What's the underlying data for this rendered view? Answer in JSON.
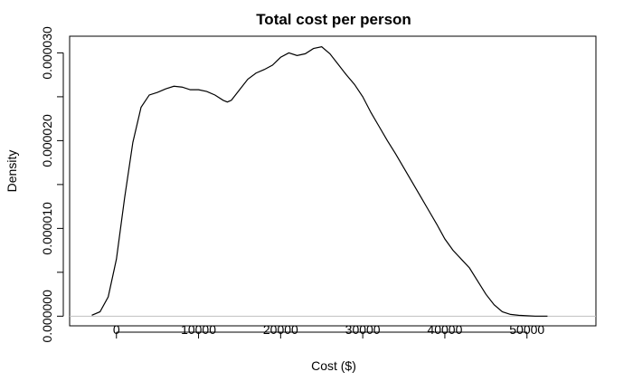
{
  "chart_data": {
    "type": "line",
    "title": "Total cost per person",
    "xlabel": "Cost ($)",
    "ylabel": "Density",
    "xlim": [
      -5700,
      58400
    ],
    "ylim": [
      -1.1e-06,
      3.19e-05
    ],
    "x_ticks": [
      0,
      10000,
      20000,
      30000,
      40000,
      50000
    ],
    "x_tick_labels": [
      "0",
      "10000",
      "20000",
      "30000",
      "40000",
      "50000"
    ],
    "y_ticks": [
      0,
      5e-06,
      1e-05,
      1.5e-05,
      2e-05,
      2.5e-05,
      3e-05
    ],
    "y_tick_labels": [
      "0.000000",
      "",
      "0.000010",
      "",
      "0.000020",
      "",
      "0.000030"
    ],
    "baseline": 0,
    "grid": false,
    "series": [
      {
        "x": [
          -3000,
          -2000,
          -1000,
          0,
          1000,
          2000,
          3000,
          4000,
          5000,
          6000,
          7000,
          8000,
          9000,
          10000,
          11000,
          12000,
          13000,
          13500,
          14000,
          15000,
          16000,
          17000,
          18000,
          19000,
          20000,
          21000,
          22000,
          23000,
          24000,
          25000,
          26000,
          27000,
          28000,
          29000,
          30000,
          31000,
          32000,
          33000,
          34000,
          35000,
          36000,
          37000,
          38000,
          39000,
          40000,
          41000,
          42000,
          43000,
          44000,
          45000,
          46000,
          47000,
          48000,
          49000,
          50000,
          51000,
          52000,
          52500
        ],
        "y": [
          1e-07,
          5e-07,
          2.2e-06,
          6.5e-06,
          1.35e-05,
          1.98e-05,
          2.38e-05,
          2.52e-05,
          2.55e-05,
          2.59e-05,
          2.62e-05,
          2.61e-05,
          2.58e-05,
          2.58e-05,
          2.56e-05,
          2.52e-05,
          2.46e-05,
          2.44e-05,
          2.46e-05,
          2.58e-05,
          2.7e-05,
          2.77e-05,
          2.81e-05,
          2.86e-05,
          2.95e-05,
          3e-05,
          2.97e-05,
          2.99e-05,
          3.05e-05,
          3.07e-05,
          2.99e-05,
          2.87e-05,
          2.75e-05,
          2.64e-05,
          2.5e-05,
          2.32e-05,
          2.16e-05,
          2e-05,
          1.85e-05,
          1.69e-05,
          1.53e-05,
          1.37e-05,
          1.21e-05,
          1.05e-05,
          8.8e-06,
          7.5e-06,
          6.5e-06,
          5.5e-06,
          4e-06,
          2.5e-06,
          1.3e-06,
          5e-07,
          2e-07,
          1e-07,
          5e-08,
          0.0,
          0.0,
          0.0
        ],
        "color": "#000000"
      }
    ]
  }
}
